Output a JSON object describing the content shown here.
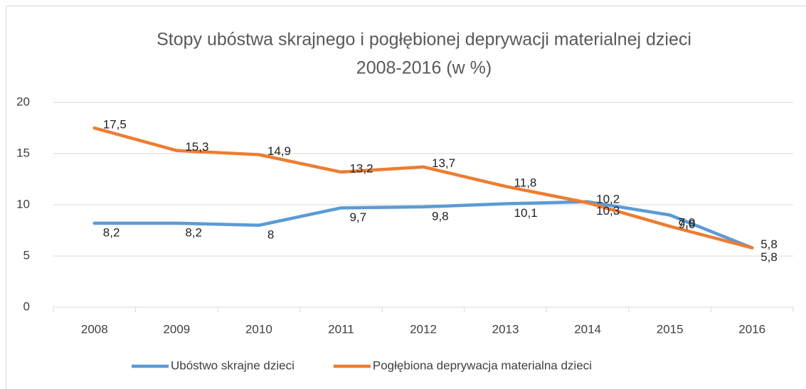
{
  "chart_data": {
    "type": "line",
    "title": [
      "Stopy ubóstwa skrajnego i pogłębionej deprywacji materialnej dzieci",
      "2008-2016 (w %)"
    ],
    "categories": [
      "2008",
      "2009",
      "2010",
      "2011",
      "2012",
      "2013",
      "2014",
      "2015",
      "2016"
    ],
    "series": [
      {
        "name": "Ubóstwo skrajne dzieci",
        "color": "#5b9bd5",
        "values": [
          8.2,
          8.2,
          8,
          9.7,
          9.8,
          10.1,
          10.3,
          9.0,
          5.8
        ],
        "value_labels": [
          "8,2",
          "8,2",
          "8",
          "9,7",
          "9,8",
          "10,1",
          "10,3",
          "9,0",
          "5,8"
        ]
      },
      {
        "name": "Pogłębiona deprywacja materialna dzieci",
        "color": "#ed7d31",
        "values": [
          17.5,
          15.3,
          14.9,
          13.2,
          13.7,
          11.8,
          10.2,
          7.9,
          5.8
        ],
        "value_labels": [
          "17,5",
          "15,3",
          "14,9",
          "13,2",
          "13,7",
          "11,8",
          "10,2",
          "7,9",
          "5,8"
        ]
      }
    ],
    "ylim": [
      0,
      20
    ],
    "yticks": [
      0,
      5,
      10,
      15,
      20
    ],
    "grid": true,
    "legend": "bottom"
  }
}
